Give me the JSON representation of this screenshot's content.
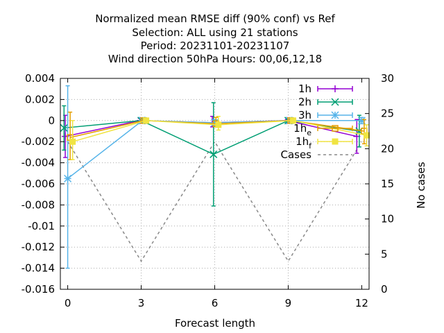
{
  "chart_data": {
    "type": "line",
    "title_lines": [
      "Normalized mean RMSE diff (90% conf) vs Ref",
      "Selection: ALL using    21 stations",
      "Period: 20231101-20231107",
      "Wind direction 50hPa   Hours:  00,06,12,18"
    ],
    "xlabel": "Forecast length",
    "ylabel_right": "No cases",
    "xlim": [
      -0.3,
      12.3
    ],
    "ylim": [
      -0.016,
      0.004
    ],
    "y2lim": [
      0,
      30
    ],
    "xticks": [
      0,
      3,
      6,
      9,
      12
    ],
    "yticks": [
      0.004,
      0.002,
      0,
      -0.002,
      -0.004,
      -0.006,
      -0.008,
      -0.01,
      -0.012,
      -0.014,
      -0.016
    ],
    "ytick_labels": [
      "0.004",
      "0.002",
      "0",
      "-0.002",
      "-0.004",
      "-0.006",
      "-0.008",
      "-0.01",
      "-0.012",
      "-0.014",
      "-0.016"
    ],
    "y2ticks": [
      0,
      5,
      10,
      15,
      20,
      25,
      30
    ],
    "y2tick_labels": [
      "0",
      "5",
      "10",
      "15",
      "20",
      "25",
      "30"
    ],
    "grid": true,
    "legend_position": "top-right",
    "series": [
      {
        "name": "1h",
        "label_main": "1h",
        "label_sub": "",
        "color": "#9400d3",
        "marker": "plus",
        "x": [
          -0.1,
          2.95,
          5.9,
          8.95,
          11.8
        ],
        "y": [
          -0.0015,
          0.0,
          -0.0002,
          0.0,
          -0.0015
        ],
        "err_low": [
          -0.0035,
          -0.0002,
          -0.0006,
          -0.0001,
          -0.0031
        ],
        "err_high": [
          0.0005,
          0.0002,
          0.0004,
          0.0001,
          0.0001
        ]
      },
      {
        "name": "2h",
        "label_main": "2h",
        "label_sub": "",
        "color": "#009e73",
        "marker": "cross",
        "x": [
          -0.15,
          3.0,
          5.95,
          9.0,
          11.9
        ],
        "y": [
          -0.0007,
          0.0,
          -0.0032,
          0.0,
          -0.001
        ],
        "err_low": [
          -0.0028,
          -0.0002,
          -0.0081,
          -0.0001,
          -0.0025
        ],
        "err_high": [
          0.0014,
          0.0002,
          0.0017,
          0.0001,
          0.0005
        ]
      },
      {
        "name": "3h",
        "label_main": "3h",
        "label_sub": "",
        "color": "#56b4e9",
        "marker": "star",
        "x": [
          0.0,
          3.05,
          6.0,
          9.05,
          12.0
        ],
        "y": [
          -0.0055,
          0.0,
          -0.0002,
          0.0,
          0.0
        ],
        "err_low": [
          -0.014,
          -0.0001,
          -0.0005,
          -0.0001,
          -0.0003
        ],
        "err_high": [
          0.0033,
          0.0001,
          0.0001,
          0.0001,
          0.0003
        ]
      },
      {
        "name": "1he",
        "label_main": "1h",
        "label_sub": "e",
        "color": "#e69f00",
        "marker": "box",
        "x": [
          0.1,
          3.1,
          6.05,
          9.1,
          12.1
        ],
        "y": [
          -0.0016,
          0.0,
          -0.0003,
          0.0,
          -0.001
        ],
        "err_low": [
          -0.0037,
          -0.0001,
          -0.0006,
          -0.0001,
          -0.0022
        ],
        "err_high": [
          0.0008,
          0.0001,
          0.0003,
          0.0001,
          0.0001
        ]
      },
      {
        "name": "1hf",
        "label_main": "1h",
        "label_sub": "f",
        "color": "#f0e442",
        "marker": "filled-box",
        "x": [
          0.2,
          3.2,
          6.15,
          9.2,
          12.2
        ],
        "y": [
          -0.002,
          0.0,
          -0.0004,
          0.0,
          -0.0014
        ],
        "err_low": [
          -0.0037,
          -0.0001,
          -0.0009,
          -0.0001,
          -0.0024
        ],
        "err_high": [
          0.0,
          0.0001,
          0.0004,
          0.0001,
          -0.0004
        ]
      }
    ],
    "cases": {
      "name": "Cases",
      "color": "#888888",
      "x": [
        0,
        3,
        6,
        9,
        12
      ],
      "y": [
        21,
        4,
        21,
        4,
        21
      ]
    }
  }
}
